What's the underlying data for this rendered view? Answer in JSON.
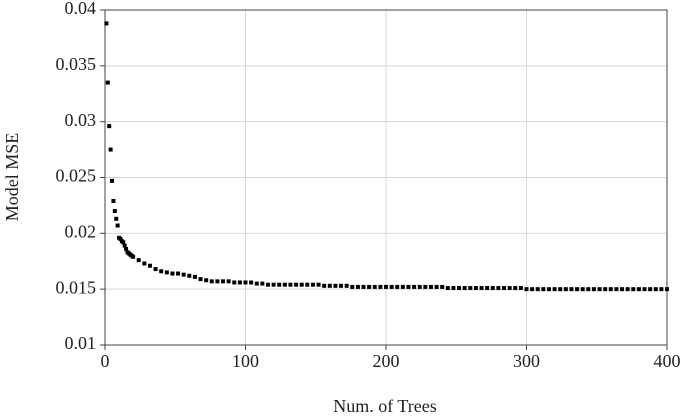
{
  "chart_data": {
    "type": "scatter",
    "xlabel": "Num. of Trees",
    "ylabel": "Model MSE",
    "xlim": [
      0,
      400
    ],
    "ylim": [
      0.01,
      0.04
    ],
    "xticks": [
      0,
      100,
      200,
      300,
      400
    ],
    "yticks": [
      0.01,
      0.015,
      0.02,
      0.025,
      0.03,
      0.035,
      0.04
    ],
    "grid": true,
    "color": "#000000",
    "x": [
      1,
      2,
      3,
      4,
      5,
      6,
      7,
      8,
      9,
      10,
      11,
      12,
      13,
      14,
      15,
      16,
      17,
      18,
      19,
      20,
      24,
      28,
      32,
      36,
      40,
      44,
      48,
      52,
      56,
      60,
      64,
      68,
      72,
      76,
      80,
      84,
      88,
      92,
      96,
      100,
      104,
      108,
      112,
      116,
      120,
      124,
      128,
      132,
      136,
      140,
      144,
      148,
      152,
      156,
      160,
      164,
      168,
      172,
      176,
      180,
      184,
      188,
      192,
      196,
      200,
      204,
      208,
      212,
      216,
      220,
      224,
      228,
      232,
      236,
      240,
      244,
      248,
      252,
      256,
      260,
      264,
      268,
      272,
      276,
      280,
      284,
      288,
      292,
      296,
      300,
      304,
      308,
      312,
      316,
      320,
      324,
      328,
      332,
      336,
      340,
      344,
      348,
      352,
      356,
      360,
      364,
      368,
      372,
      376,
      380,
      384,
      388,
      392,
      396,
      400
    ],
    "values": [
      0.0388,
      0.0335,
      0.0296,
      0.0275,
      0.0247,
      0.0229,
      0.022,
      0.0213,
      0.0207,
      0.0196,
      0.0195,
      0.0193,
      0.0192,
      0.0189,
      0.0186,
      0.0183,
      0.0182,
      0.0181,
      0.018,
      0.0179,
      0.0176,
      0.0173,
      0.0171,
      0.0168,
      0.0166,
      0.0165,
      0.0164,
      0.0164,
      0.0163,
      0.0162,
      0.0161,
      0.0159,
      0.0158,
      0.0157,
      0.0157,
      0.0157,
      0.0157,
      0.0156,
      0.0156,
      0.0156,
      0.0156,
      0.0155,
      0.0155,
      0.0154,
      0.0154,
      0.0154,
      0.0154,
      0.0154,
      0.0154,
      0.0154,
      0.0154,
      0.0154,
      0.0154,
      0.0153,
      0.0153,
      0.0153,
      0.0153,
      0.0153,
      0.0152,
      0.0152,
      0.0152,
      0.0152,
      0.0152,
      0.0152,
      0.0152,
      0.0152,
      0.0152,
      0.0152,
      0.0152,
      0.0152,
      0.0152,
      0.0152,
      0.0152,
      0.0152,
      0.0152,
      0.0151,
      0.0151,
      0.0151,
      0.0151,
      0.0151,
      0.0151,
      0.0151,
      0.0151,
      0.0151,
      0.0151,
      0.0151,
      0.0151,
      0.0151,
      0.0151,
      0.015,
      0.015,
      0.015,
      0.015,
      0.015,
      0.015,
      0.015,
      0.015,
      0.015,
      0.015,
      0.015,
      0.015,
      0.015,
      0.015,
      0.015,
      0.015,
      0.015,
      0.015,
      0.015,
      0.015,
      0.015,
      0.015,
      0.015,
      0.015,
      0.015,
      0.015
    ]
  }
}
